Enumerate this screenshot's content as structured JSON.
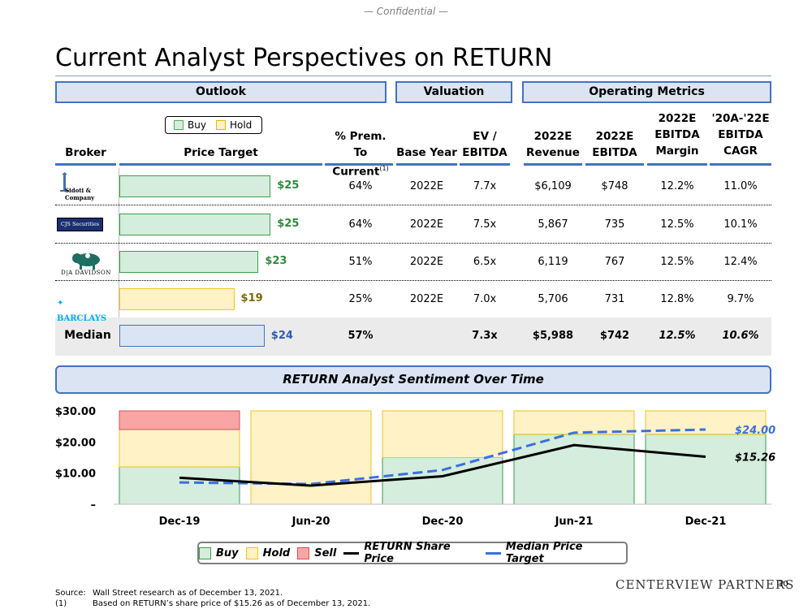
{
  "confidential": "— Confidential —",
  "title": "Current Analyst Perspectives on RETURN",
  "sections": {
    "outlook": "Outlook",
    "valuation": "Valuation",
    "operating": "Operating Metrics"
  },
  "legend_top": {
    "buy": "Buy",
    "hold": "Hold"
  },
  "headers": {
    "broker": "Broker",
    "price_target": "Price Target",
    "prem_l1": "% Prem.",
    "prem_l2": "To Current",
    "prem_note": "(1)",
    "base_year": "Base Year",
    "ev_l1": "EV /",
    "ev_l2": "EBITDA",
    "rev_l1": "2022E",
    "rev_l2": "Revenue",
    "ebitda_l1": "2022E",
    "ebitda_l2": "EBITDA",
    "margin_l1": "2022E",
    "margin_l2": "EBITDA",
    "margin_l3": "Margin",
    "cagr_l1": "'20A-'22E",
    "cagr_l2": "EBITDA",
    "cagr_l3": "CAGR"
  },
  "brokers": [
    {
      "name": "Sidoti & Company",
      "rating": "Buy",
      "price_target": 25,
      "price_target_label": "$25",
      "prem": "64%",
      "base_year": "2022E",
      "ev_ebitda": "7.7x",
      "revenue": "$6,109",
      "ebitda": "$748",
      "margin": "12.2%",
      "cagr": "11.0%"
    },
    {
      "name": "CJS Securities",
      "rating": "Buy",
      "price_target": 25,
      "price_target_label": "$25",
      "prem": "64%",
      "base_year": "2022E",
      "ev_ebitda": "7.5x",
      "revenue": "5,867",
      "ebitda": "735",
      "margin": "12.5%",
      "cagr": "10.1%"
    },
    {
      "name": "D|A DAVIDSON",
      "rating": "Buy",
      "price_target": 23,
      "price_target_label": "$23",
      "prem": "51%",
      "base_year": "2022E",
      "ev_ebitda": "6.5x",
      "revenue": "6,119",
      "ebitda": "767",
      "margin": "12.5%",
      "cagr": "12.4%"
    },
    {
      "name": "BARCLAYS",
      "rating": "Hold",
      "price_target": 19,
      "price_target_label": "$19",
      "prem": "25%",
      "base_year": "2022E",
      "ev_ebitda": "7.0x",
      "revenue": "5,706",
      "ebitda": "731",
      "margin": "12.8%",
      "cagr": "9.7%"
    }
  ],
  "median": {
    "label": "Median",
    "price_target": 24,
    "price_target_label": "$24",
    "prem": "57%",
    "ev_ebitda": "7.3x",
    "revenue": "$5,988",
    "ebitda": "$742",
    "margin": "12.5%",
    "cagr": "10.6%"
  },
  "sentiment_title": "RETURN Analyst Sentiment Over Time",
  "colors": {
    "buy_fill": "#d4eddc",
    "buy_stroke": "#3aa04a",
    "hold_fill": "#fff2c7",
    "hold_stroke": "#f0c419",
    "sell_fill": "#f8a5a5",
    "sell_stroke": "#d9534f",
    "share_price": "#000000",
    "median_pt": "#3a6fe0",
    "accent": "#4472c4"
  },
  "chart_data": {
    "type": "bar",
    "subtype": "stacked-bar-with-lines",
    "categories": [
      "Dec-19",
      "Jun-20",
      "Dec-20",
      "Jun-21",
      "Dec-21"
    ],
    "series": [
      {
        "name": "Buy",
        "values": [
          12,
          0,
          15,
          22.5,
          22.5
        ]
      },
      {
        "name": "Hold",
        "values": [
          12,
          30,
          15,
          7.5,
          7.5
        ]
      },
      {
        "name": "Sell",
        "values": [
          6,
          0,
          0,
          0,
          0
        ]
      }
    ],
    "lines": [
      {
        "name": "RETURN Share Price",
        "x": [
          0,
          1,
          2,
          3,
          4
        ],
        "values": [
          8.5,
          6.0,
          9.0,
          19.0,
          15.26
        ],
        "end_label": "$15.26"
      },
      {
        "name": "Median Price Target",
        "x": [
          0,
          1,
          2,
          3,
          4
        ],
        "values": [
          7.0,
          6.5,
          11.0,
          23.0,
          24.0
        ],
        "end_label": "$24.00"
      }
    ],
    "yticks": [
      "–",
      "$10.00",
      "$20.00",
      "$30.00"
    ],
    "ytick_values": [
      0,
      10,
      20,
      30
    ],
    "ylim": [
      0,
      30
    ],
    "legend": [
      "Buy",
      "Hold",
      "Sell",
      "RETURN Share Price",
      "Median Price Target"
    ],
    "legend_position": "bottom",
    "grid": false
  },
  "footnotes": {
    "source_key": "Source:",
    "source_text": "Wall Street research as of December 13, 2021.",
    "note_key": "(1)",
    "note_text": "Based on RETURN’s share price of $15.26 as of December 13, 2021."
  },
  "footer_brand": "CENTERVIEW PARTNERS",
  "page_number": "30"
}
